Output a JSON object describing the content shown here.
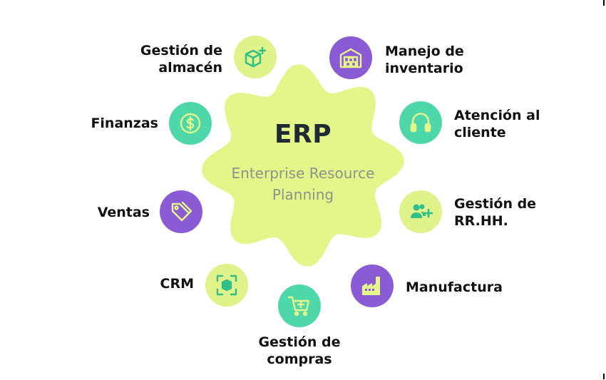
{
  "center": {
    "title": "ERP",
    "subtitle_line1": "Enterprise Resource",
    "subtitle_line2": "Planning"
  },
  "colors": {
    "blob": "#e4f58a",
    "green_node": "#4ed8a9",
    "lime_node": "#dff38a",
    "purple_node": "#8b5bd6",
    "text": "#111111"
  },
  "modules": [
    {
      "id": "almacen",
      "line1": "Gestión de",
      "line2": "almacén",
      "icon": "box-plus-icon"
    },
    {
      "id": "inventario",
      "line1": "Manejo de",
      "line2": "inventario",
      "icon": "warehouse-icon"
    },
    {
      "id": "finanzas",
      "line1": "Finanzas",
      "line2": "",
      "icon": "dollar-coin-icon"
    },
    {
      "id": "atencion",
      "line1": "Atención al",
      "line2": "cliente",
      "icon": "headphones-icon"
    },
    {
      "id": "ventas",
      "line1": "Ventas",
      "line2": "",
      "icon": "price-tag-icon"
    },
    {
      "id": "rrhh",
      "line1": "Gestión de",
      "line2": "RR.HH.",
      "icon": "add-people-icon"
    },
    {
      "id": "crm",
      "line1": "CRM",
      "line2": "",
      "icon": "crm-scan-icon"
    },
    {
      "id": "manufactura",
      "line1": "Manufactura",
      "line2": "",
      "icon": "factory-icon"
    },
    {
      "id": "compras",
      "line1": "Gestión de",
      "line2": "compras",
      "icon": "cart-plus-icon"
    }
  ]
}
